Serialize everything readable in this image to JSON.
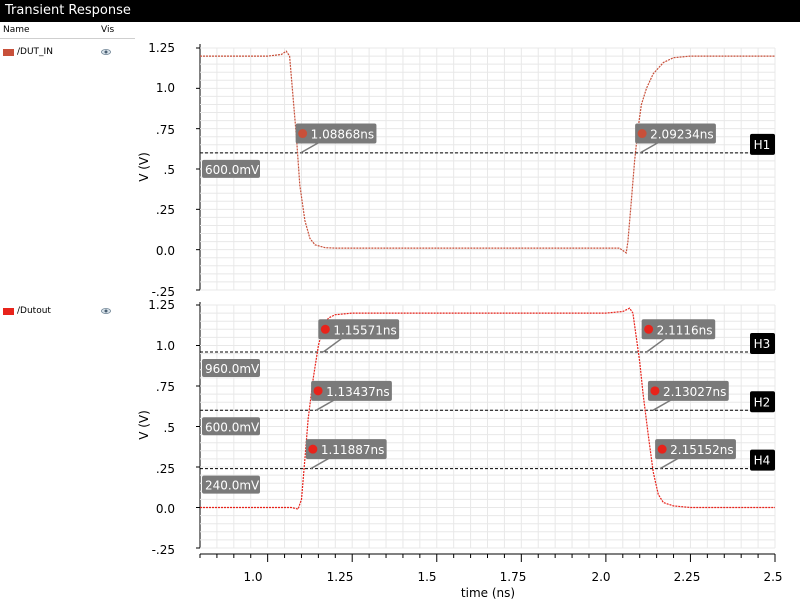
{
  "window": {
    "title": "Transient Response"
  },
  "legend": {
    "name_header": "Name",
    "vis_header": "Vis",
    "items": [
      {
        "label": "/DUT_IN",
        "color": "#c8503a",
        "icon": "eye-icon"
      },
      {
        "label": "/Dutout",
        "color": "#e8231b",
        "icon": "eye-icon"
      }
    ]
  },
  "chart_data": [
    {
      "type": "line",
      "ylabel": "V (V)",
      "ylim": [
        -0.25,
        1.25
      ],
      "yticks": [
        "1.25",
        "1.0",
        ".75",
        ".5",
        ".25",
        "0.0",
        "-.25"
      ],
      "grid": true,
      "series": [
        {
          "name": "/DUT_IN",
          "color": "#c8503a",
          "x": [
            0.8,
            1.0,
            1.04,
            1.055,
            1.065,
            1.075,
            1.085,
            1.095,
            1.11,
            1.125,
            1.14,
            1.17,
            1.2,
            1.3,
            1.7,
            2.0,
            2.04,
            2.06,
            2.065,
            2.075,
            2.085,
            2.095,
            2.105,
            2.12,
            2.14,
            2.17,
            2.2,
            2.25,
            2.5
          ],
          "y": [
            1.2,
            1.2,
            1.21,
            1.23,
            1.2,
            0.95,
            0.7,
            0.4,
            0.18,
            0.07,
            0.03,
            0.012,
            0.01,
            0.01,
            0.01,
            0.01,
            0.01,
            -0.02,
            0.05,
            0.3,
            0.55,
            0.75,
            0.9,
            1.0,
            1.09,
            1.16,
            1.19,
            1.2,
            1.2
          ]
        }
      ],
      "hlines": [
        {
          "name": "H1",
          "value": 0.6,
          "label": "600.0mV"
        }
      ],
      "markers": [
        {
          "x": 1.08868,
          "y": 0.72,
          "label": "1.08868ns"
        },
        {
          "x": 2.09234,
          "y": 0.72,
          "label": "2.09234ns"
        }
      ]
    },
    {
      "type": "line",
      "ylabel": "V (V)",
      "xlabel": "time (ns)",
      "ylim": [
        -0.25,
        1.25
      ],
      "xlim": [
        0.8,
        2.5
      ],
      "xticks": [
        "1.0",
        "1.25",
        "1.5",
        "1.75",
        "2.0",
        "2.25",
        "2.5"
      ],
      "yticks": [
        "1.25",
        "1.0",
        ".75",
        ".5",
        ".25",
        "0.0",
        "-.25"
      ],
      "grid": true,
      "series": [
        {
          "name": "/Dutout",
          "color": "#e8231b",
          "x": [
            0.8,
            1.05,
            1.07,
            1.09,
            1.1,
            1.11,
            1.12,
            1.135,
            1.15,
            1.165,
            1.18,
            1.2,
            1.25,
            1.5,
            2.0,
            2.05,
            2.07,
            2.08,
            2.09,
            2.1,
            2.11,
            2.125,
            2.14,
            2.155,
            2.17,
            2.2,
            2.25,
            2.5
          ],
          "y": [
            0.0,
            0.0,
            0.0,
            -0.01,
            0.05,
            0.3,
            0.55,
            0.8,
            1.0,
            1.12,
            1.17,
            1.19,
            1.2,
            1.2,
            1.2,
            1.21,
            1.23,
            1.2,
            1.05,
            0.9,
            0.7,
            0.45,
            0.22,
            0.08,
            0.03,
            0.01,
            0.0,
            0.0
          ]
        }
      ],
      "hlines": [
        {
          "name": "H3",
          "value": 0.96,
          "label": "960.0mV"
        },
        {
          "name": "H2",
          "value": 0.6,
          "label": "600.0mV"
        },
        {
          "name": "H4",
          "value": 0.24,
          "label": "240.0mV"
        }
      ],
      "markers": [
        {
          "x": 1.15571,
          "y": 1.1,
          "label": "1.15571ns"
        },
        {
          "x": 1.13437,
          "y": 0.72,
          "label": "1.13437ns"
        },
        {
          "x": 1.11887,
          "y": 0.36,
          "label": "1.11887ns"
        },
        {
          "x": 2.1116,
          "y": 1.1,
          "label": "2.1116ns"
        },
        {
          "x": 2.13027,
          "y": 0.72,
          "label": "2.13027ns"
        },
        {
          "x": 2.15152,
          "y": 0.36,
          "label": "2.15152ns"
        }
      ]
    }
  ]
}
